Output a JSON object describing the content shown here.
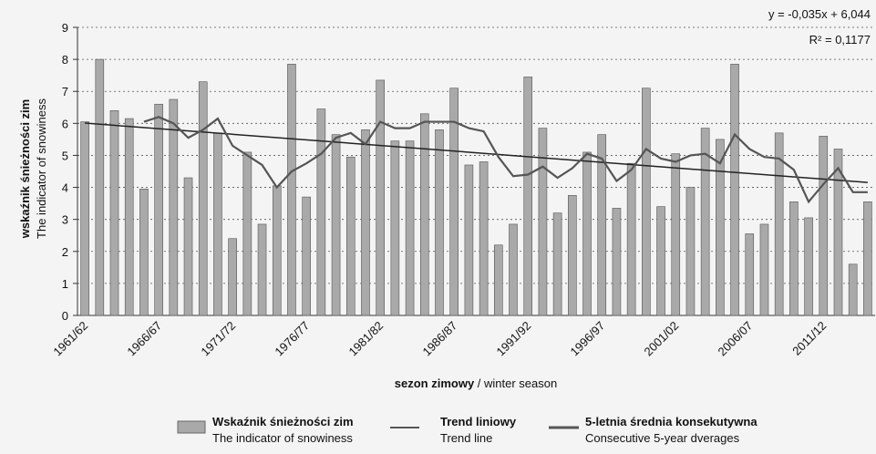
{
  "chart_data": {
    "type": "bar",
    "y_label": "wskaźnik śnieżności zim",
    "y_label_en": "The indicator of snowiness",
    "x_label": "sezon zimowy",
    "x_label_en": " / winter season",
    "categories": [
      "1961/62",
      null,
      null,
      null,
      null,
      "1966/67",
      null,
      null,
      null,
      null,
      "1971/72",
      null,
      null,
      null,
      null,
      "1976/77",
      null,
      null,
      null,
      null,
      "1981/82",
      null,
      null,
      null,
      null,
      "1986/87",
      null,
      null,
      null,
      null,
      "1991/92",
      null,
      null,
      null,
      null,
      "1996/97",
      null,
      null,
      null,
      null,
      "2001/02",
      null,
      null,
      null,
      null,
      "2006/07",
      null,
      null,
      null,
      null,
      "2011/12",
      null,
      null,
      null
    ],
    "series": [
      {
        "name": "Wskaźnik śnieżności zim",
        "name_en": "The indicator of snowiness",
        "color": "#a9a9a9",
        "values": [
          6.05,
          8,
          6.4,
          6.15,
          3.95,
          6.6,
          6.75,
          4.3,
          7.3,
          5.7,
          2.4,
          5.1,
          2.85,
          4.05,
          7.85,
          3.7,
          6.45,
          5.65,
          4.95,
          5.8,
          7.35,
          5.45,
          5.45,
          6.3,
          5.8,
          7.1,
          4.7,
          4.8,
          2.2,
          2.85,
          7.45,
          5.85,
          3.2,
          3.75,
          5.1,
          5.65,
          3.35,
          4.75,
          7.1,
          3.4,
          5.05,
          4.0,
          5.85,
          5.5,
          7.85,
          2.55,
          2.85,
          5.7,
          3.55,
          3.05,
          5.6,
          5.2,
          1.6,
          3.55
        ]
      },
      {
        "name": "5-letnia średnia konsekutywna",
        "name_en": "Consecutive 5-year dverages",
        "color": "#555555",
        "values": [
          null,
          null,
          null,
          null,
          6.05,
          6.2,
          6.0,
          5.55,
          5.8,
          6.15,
          5.3,
          5.0,
          4.7,
          4.0,
          4.5,
          4.75,
          5.05,
          5.55,
          5.7,
          5.35,
          6.05,
          5.85,
          5.85,
          6.05,
          6.05,
          6.05,
          5.85,
          5.75,
          4.95,
          4.35,
          4.4,
          4.65,
          4.3,
          4.6,
          5.05,
          4.9,
          4.2,
          4.55,
          5.2,
          4.9,
          4.8,
          5.0,
          5.05,
          4.75,
          5.65,
          5.2,
          4.95,
          4.9,
          4.55,
          3.55,
          4.1,
          4.6,
          3.85,
          3.85
        ]
      }
    ],
    "trend": {
      "name": "Trend liniowy",
      "name_en": "Trend line",
      "color": "#222222",
      "slope": -0.035,
      "intercept": 6.044,
      "equation": "y = -0,035x + 6,044",
      "r2_label": "R² = 0,1177"
    },
    "ylim": [
      0,
      9
    ],
    "yticks": [
      0,
      1,
      2,
      3,
      4,
      5,
      6,
      7,
      8,
      9
    ],
    "grid": true
  }
}
